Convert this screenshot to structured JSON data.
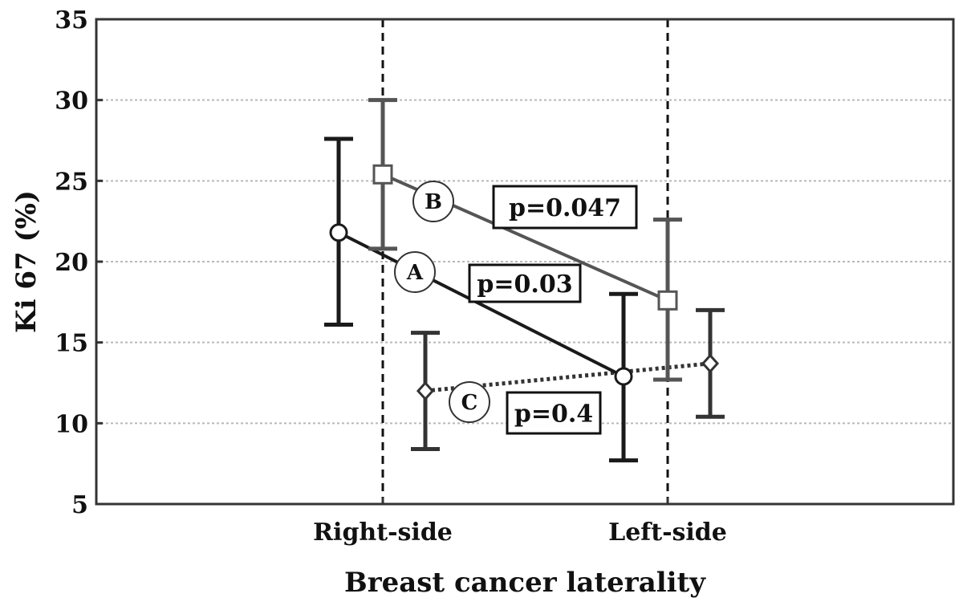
{
  "chart_data": {
    "type": "line",
    "xlabel": "Breast cancer laterality",
    "ylabel": "Ki 67 (%)",
    "ylim": [
      5,
      35
    ],
    "yticks": [
      5,
      10,
      15,
      20,
      25,
      30,
      35
    ],
    "categories": [
      "Right-side",
      "Left-side"
    ],
    "grid": true,
    "series": [
      {
        "name": "A",
        "color": "#1a1a1a",
        "line_style": "solid",
        "marker": "circle",
        "values": [
          21.8,
          12.9
        ],
        "err_low": [
          16.1,
          7.7
        ],
        "err_high": [
          27.6,
          18.0
        ],
        "p_label": "p=0.03"
      },
      {
        "name": "B",
        "color": "#555555",
        "line_style": "solid",
        "marker": "square",
        "values": [
          25.4,
          17.6
        ],
        "err_low": [
          20.8,
          12.7
        ],
        "err_high": [
          30.0,
          22.6
        ],
        "p_label": "p=0.047"
      },
      {
        "name": "C",
        "color": "#333333",
        "line_style": "dotted",
        "marker": "diamond",
        "values": [
          12.0,
          13.7
        ],
        "err_low": [
          8.4,
          10.4
        ],
        "err_high": [
          15.6,
          17.0
        ],
        "p_label": "p=0.4"
      }
    ]
  }
}
